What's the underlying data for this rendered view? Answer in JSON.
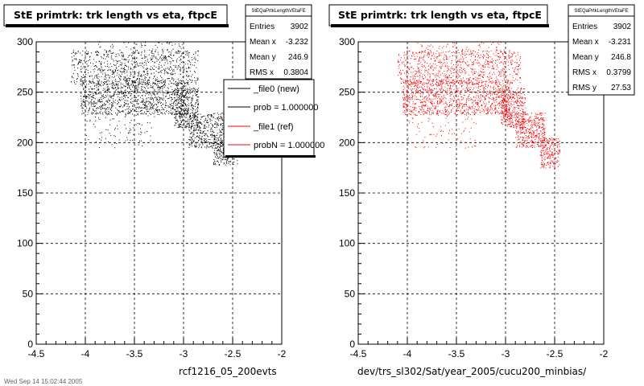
{
  "footer_text": "Wed Sep 14 15:02:44 2005",
  "legend": {
    "entries": [
      {
        "label": "_file0 (new)",
        "color": "#000000"
      },
      {
        "label": "prob = 1.000000",
        "color": "#000000"
      },
      {
        "label": "_file1 (ref)",
        "color": "#ff0000"
      },
      {
        "label": "probN = 1.000000",
        "color": "#ff0000"
      }
    ]
  },
  "panels": [
    {
      "title": "StE primtrk: trk length vs eta, ftpcE",
      "xlabel": "rcf1216_05_200evts",
      "point_color": "#000000",
      "stats": {
        "name": "StEQaPrtkLengthVEtaFE",
        "rows": [
          {
            "label": "Entries",
            "value": "3902"
          },
          {
            "label": "Mean x",
            "value": "-3.232"
          },
          {
            "label": "Mean y",
            "value": "246.9"
          },
          {
            "label": "RMS x",
            "value": "0.3804"
          }
        ]
      }
    },
    {
      "title": "StE primtrk: trk length vs eta, ftpcE",
      "xlabel": "dev/trs_sl302/Sat/year_2005/cucu200_minbias/",
      "point_color": "#ff0000",
      "stats": {
        "name": "StEQaPrtkLengthVEtaFE",
        "rows": [
          {
            "label": "Entries",
            "value": "3902"
          },
          {
            "label": "Mean x",
            "value": "-3.231"
          },
          {
            "label": "Mean y",
            "value": "246.8"
          },
          {
            "label": "RMS x",
            "value": "0.3799"
          },
          {
            "label": "RMS y",
            "value": "27.53"
          }
        ]
      }
    }
  ],
  "chart_data": [
    {
      "type": "scatter",
      "title": "StE primtrk: trk length vs eta, ftpcE",
      "xlabel": "rcf1216_05_200evts",
      "ylabel": "",
      "xlim": [
        -4.5,
        -2
      ],
      "ylim": [
        0,
        300
      ],
      "xticks": [
        "-4.5",
        "-4",
        "-3.5",
        "-3",
        "-2.5",
        "-2"
      ],
      "yticks": [
        "0",
        "50",
        "100",
        "150",
        "200",
        "250",
        "300"
      ],
      "grid": true,
      "series": [
        {
          "color": "#000000",
          "entries": 3902
        }
      ],
      "regions": [
        {
          "x": [
            -4.15,
            -2.85
          ],
          "y": [
            258,
            292
          ],
          "n": 650
        },
        {
          "x": [
            -4.05,
            -2.95
          ],
          "y": [
            228,
            262
          ],
          "n": 1100
        },
        {
          "x": [
            -3.1,
            -2.85
          ],
          "y": [
            215,
            255
          ],
          "n": 350
        },
        {
          "x": [
            -2.95,
            -2.6
          ],
          "y": [
            195,
            230
          ],
          "n": 380
        },
        {
          "x": [
            -2.7,
            -2.45
          ],
          "y": [
            178,
            205
          ],
          "n": 220
        },
        {
          "x": [
            -4.0,
            -3.3
          ],
          "y": [
            195,
            230
          ],
          "n": 90
        },
        {
          "x": [
            -3.9,
            -3.0
          ],
          "y": [
            262,
            300
          ],
          "n": 200
        }
      ]
    },
    {
      "type": "scatter",
      "title": "StE primtrk: trk length vs eta, ftpcE",
      "xlabel": "dev/trs_sl302/Sat/year_2005/cucu200_minbias/",
      "ylabel": "",
      "xlim": [
        -4.5,
        -2
      ],
      "ylim": [
        0,
        300
      ],
      "xticks": [
        "-4.5",
        "-4",
        "-3.5",
        "-3",
        "-2.5",
        "-2"
      ],
      "yticks": [
        "0",
        "50",
        "100",
        "150",
        "200",
        "250",
        "300"
      ],
      "grid": true,
      "series": [
        {
          "color": "#ff0000",
          "entries": 3902
        }
      ],
      "regions": [
        {
          "x": [
            -4.1,
            -2.85
          ],
          "y": [
            258,
            292
          ],
          "n": 650
        },
        {
          "x": [
            -4.05,
            -2.95
          ],
          "y": [
            228,
            262
          ],
          "n": 1100
        },
        {
          "x": [
            -3.05,
            -2.8
          ],
          "y": [
            215,
            255
          ],
          "n": 350
        },
        {
          "x": [
            -2.9,
            -2.6
          ],
          "y": [
            195,
            230
          ],
          "n": 380
        },
        {
          "x": [
            -2.65,
            -2.45
          ],
          "y": [
            175,
            205
          ],
          "n": 220
        },
        {
          "x": [
            -4.0,
            -3.3
          ],
          "y": [
            195,
            230
          ],
          "n": 90
        },
        {
          "x": [
            -3.9,
            -3.0
          ],
          "y": [
            262,
            300
          ],
          "n": 200
        }
      ]
    }
  ]
}
